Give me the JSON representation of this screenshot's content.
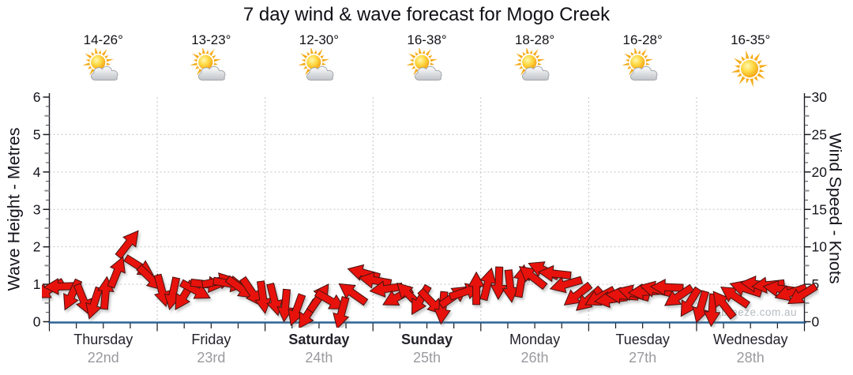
{
  "title": "7 day wind & wave forecast for Mogo Creek",
  "watermark": "seabreeze.com.au",
  "days": [
    {
      "name": "Thursday",
      "date": "22nd",
      "bold": false,
      "temp": "14-26°",
      "icon": "sun-cloud"
    },
    {
      "name": "Friday",
      "date": "23rd",
      "bold": false,
      "temp": "13-23°",
      "icon": "sun-cloud"
    },
    {
      "name": "Saturday",
      "date": "24th",
      "bold": true,
      "temp": "12-30°",
      "icon": "sun-cloud"
    },
    {
      "name": "Sunday",
      "date": "25th",
      "bold": true,
      "temp": "16-38°",
      "icon": "sun-cloud"
    },
    {
      "name": "Monday",
      "date": "26th",
      "bold": false,
      "temp": "18-28°",
      "icon": "sun-cloud"
    },
    {
      "name": "Tuesday",
      "date": "27th",
      "bold": false,
      "temp": "16-28°",
      "icon": "sun-cloud"
    },
    {
      "name": "Wednesday",
      "date": "28th",
      "bold": false,
      "temp": "16-35°",
      "icon": "sun"
    }
  ],
  "chart_data": {
    "type": "line",
    "title": "7 day wind & wave forecast for Mogo Creek",
    "left_axis": {
      "label": "Wave Height - Metres",
      "min": 0,
      "max": 6,
      "label_step": 1
    },
    "right_axis": {
      "label": "Wind Speed - Knots",
      "min": 0,
      "max": 30,
      "label_step": 5
    },
    "x_axis": {
      "unit": "hours",
      "total": 168,
      "day_span_hours": 24,
      "tick_hours": 6,
      "day_labels": [
        "Thursday 22nd",
        "Friday 23rd",
        "Saturday 24th",
        "Sunday 25th",
        "Monday 26th",
        "Tuesday 27th",
        "Wednesday 28th"
      ]
    },
    "grid": {
      "horizontal_knots": [
        5,
        10,
        15,
        20,
        25
      ],
      "vertical_day_boundaries": true,
      "style": "dotted"
    },
    "series": [
      {
        "name": "wind-speed-and-direction",
        "marker": "arrow",
        "color": "#e8120c",
        "points_format": [
          "hour_from_thu_0000",
          "knots",
          "arrow_screen_angle_deg_cw_from_right"
        ],
        "points": [
          [
            0,
            4.3,
            150
          ],
          [
            2.5,
            4.7,
            178
          ],
          [
            5,
            3.6,
            115
          ],
          [
            7.5,
            3.0,
            68
          ],
          [
            10,
            2.5,
            108
          ],
          [
            12.5,
            3.8,
            -85
          ],
          [
            15,
            6.6,
            -68
          ],
          [
            17.5,
            10.4,
            -52
          ],
          [
            20,
            7.4,
            32
          ],
          [
            22.5,
            5.8,
            44
          ],
          [
            25,
            4.2,
            75
          ],
          [
            27.5,
            3.8,
            102
          ],
          [
            30,
            3.5,
            122
          ],
          [
            32.5,
            4.2,
            28
          ],
          [
            35,
            5.0,
            6
          ],
          [
            37.5,
            5.4,
            -12
          ],
          [
            40,
            5.1,
            10
          ],
          [
            42.5,
            4.5,
            36
          ],
          [
            45,
            4.0,
            56
          ],
          [
            47.5,
            3.3,
            82
          ],
          [
            50,
            3.0,
            76
          ],
          [
            52.5,
            2.2,
            95
          ],
          [
            55,
            1.6,
            110
          ],
          [
            57.5,
            1.0,
            122
          ],
          [
            60,
            3.2,
            -55
          ],
          [
            62.5,
            2.8,
            30
          ],
          [
            65,
            1.2,
            105
          ],
          [
            67.5,
            3.8,
            -145
          ],
          [
            70,
            6.5,
            -165
          ],
          [
            72.5,
            5.5,
            190
          ],
          [
            75,
            4.4,
            172
          ],
          [
            77.5,
            3.3,
            152
          ],
          [
            80,
            3.6,
            -135
          ],
          [
            82.5,
            2.9,
            120
          ],
          [
            85,
            2.6,
            46
          ],
          [
            87.5,
            1.9,
            96
          ],
          [
            90,
            3.4,
            -35
          ],
          [
            92.5,
            4.0,
            -18
          ],
          [
            95,
            4.4,
            -90
          ],
          [
            97.5,
            5.0,
            -76
          ],
          [
            100,
            5.2,
            92
          ],
          [
            102.5,
            4.8,
            84
          ],
          [
            105,
            5.4,
            -80
          ],
          [
            107.5,
            6.0,
            -142
          ],
          [
            110,
            6.9,
            -156
          ],
          [
            112.5,
            6.4,
            186
          ],
          [
            115,
            5.0,
            164
          ],
          [
            117.5,
            3.6,
            142
          ],
          [
            120,
            3.0,
            138
          ],
          [
            122.5,
            3.3,
            152
          ],
          [
            125,
            3.0,
            172
          ],
          [
            127.5,
            3.5,
            184
          ],
          [
            130,
            3.8,
            196
          ],
          [
            132.5,
            4.0,
            176
          ],
          [
            135,
            4.3,
            -166
          ],
          [
            137.5,
            4.6,
            -178
          ],
          [
            140,
            3.4,
            146
          ],
          [
            142.5,
            2.6,
            122
          ],
          [
            145,
            2.0,
            106
          ],
          [
            147.5,
            1.6,
            94
          ],
          [
            150,
            2.3,
            -128
          ],
          [
            152.5,
            3.4,
            -146
          ],
          [
            155,
            4.4,
            -162
          ],
          [
            157.5,
            5.0,
            186
          ],
          [
            160,
            4.9,
            174
          ],
          [
            162.5,
            4.4,
            188
          ],
          [
            165,
            3.9,
            162
          ],
          [
            167.5,
            3.6,
            148
          ]
        ]
      }
    ]
  },
  "colors": {
    "arrow_fill": "#e8120c",
    "arrow_stroke": "#471210",
    "bottom_axis": "#2d6496",
    "axis_line": "#1c1c24",
    "grid": "#c2c2c2",
    "half_tick": "#8f8f93",
    "tick_label": "#14141c",
    "date_text": "#9a9aa0",
    "watermark_text": "#b6bbc1",
    "sun_core": "#f2990b",
    "sun_ray": "#f5ab18",
    "cloud_top": "#fcfdfe",
    "cloud_bottom": "#bfc3c8"
  }
}
